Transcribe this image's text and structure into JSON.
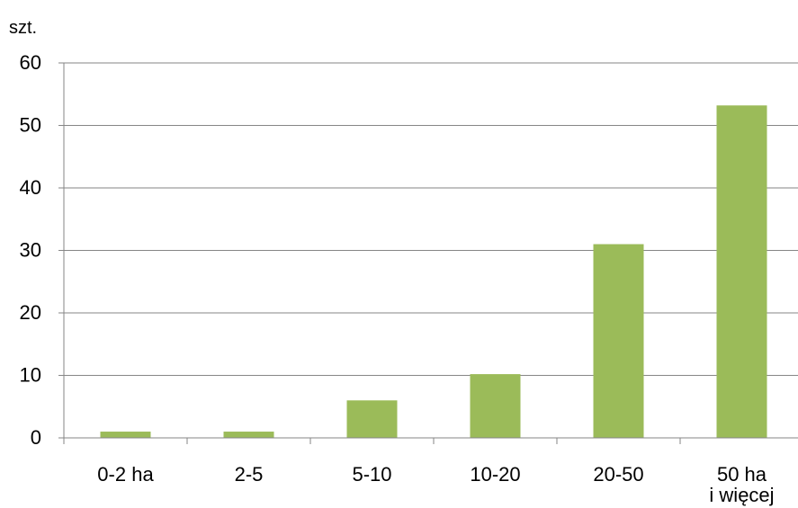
{
  "chart_data": {
    "type": "bar",
    "ylabel": "szt.",
    "categories": [
      [
        "0-2 ha"
      ],
      [
        "2-5"
      ],
      [
        "5-10"
      ],
      [
        "10-20"
      ],
      [
        "20-50"
      ],
      [
        "50 ha",
        "i więcej"
      ]
    ],
    "values": [
      1,
      1,
      6,
      10.2,
      31,
      53.2
    ],
    "ylim": [
      0,
      60
    ],
    "yticks": [
      "0",
      "10",
      "20",
      "30",
      "40",
      "50",
      "60"
    ],
    "grid": true,
    "bar_color": "#9BBB59"
  }
}
